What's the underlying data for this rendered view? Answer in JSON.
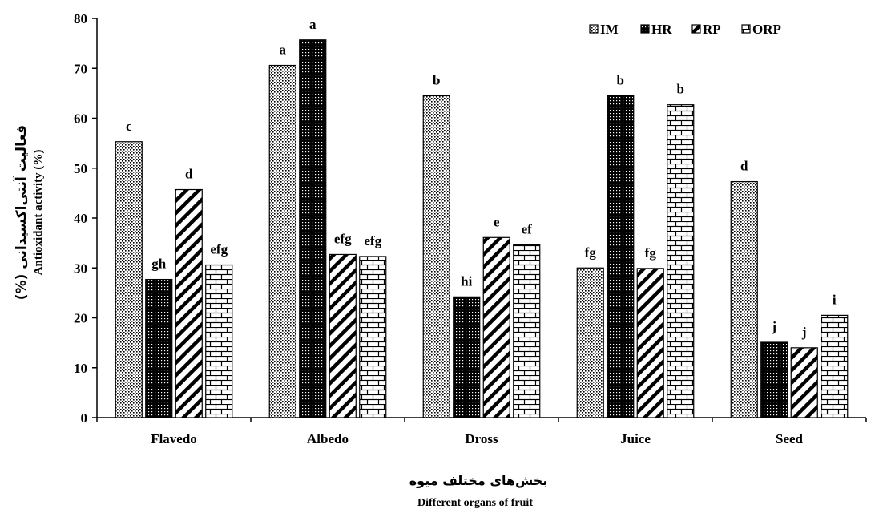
{
  "chart_data": {
    "type": "bar",
    "ylabel_fa": "فعالیت آنتی‌اکسیدانی (%)",
    "ylabel": "Antioxidant activity (%)",
    "xlabel_fa": "بخش‌های مختلف میوه",
    "xlabel": "Different organs of fruit",
    "categories": [
      "Flavedo",
      "Albedo",
      "Dross",
      "Juice",
      "Seed"
    ],
    "ylim": [
      0,
      80
    ],
    "yticks": [
      0,
      10,
      20,
      30,
      40,
      50,
      60,
      70,
      80
    ],
    "legend_position": "top-right",
    "series": [
      {
        "name": "IM",
        "pattern": "dots",
        "values": [
          55.3,
          70.6,
          64.5,
          30.0,
          47.3
        ],
        "letters": [
          "c",
          "a",
          "b",
          "fg",
          "d"
        ]
      },
      {
        "name": "HR",
        "pattern": "dark",
        "values": [
          27.7,
          75.7,
          24.2,
          64.5,
          15.1
        ],
        "letters": [
          "gh",
          "a",
          "hi",
          "b",
          "j"
        ]
      },
      {
        "name": "RP",
        "pattern": "stripe",
        "values": [
          45.7,
          32.7,
          36.1,
          29.9,
          14.0
        ],
        "letters": [
          "d",
          "efg",
          "e",
          "fg",
          "j"
        ]
      },
      {
        "name": "ORP",
        "pattern": "brick",
        "values": [
          30.6,
          32.3,
          34.6,
          62.7,
          20.5
        ],
        "letters": [
          "efg",
          "efg",
          "ef",
          "b",
          "i"
        ]
      }
    ]
  }
}
